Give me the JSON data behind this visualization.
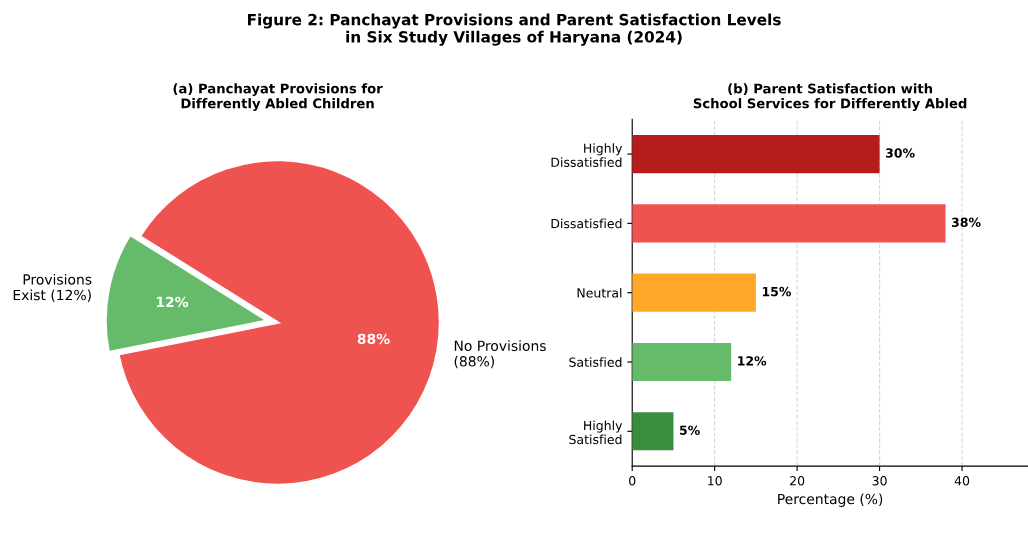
{
  "chart_data": [
    {
      "type": "pie",
      "title": "Figure 2: Panchayat Provisions and Parent Satisfaction Levels\nin Six Study Villages of Haryana (2024)",
      "subtitle": "(a) Panchayat Provisions for\nDifferently Abled Children",
      "categories": [
        "Provisions\nExist (12%)",
        "No Provisions\n(88%)"
      ],
      "values": [
        12,
        88
      ],
      "colors": [
        "#66bb6a",
        "#ef5350"
      ],
      "value_labels": [
        "12%",
        "88%"
      ]
    },
    {
      "type": "bar",
      "orientation": "horizontal",
      "subtitle": "(b) Parent Satisfaction with\nSchool Services for Differently Abled",
      "categories": [
        "Highly\nDissatisfied",
        "Dissatisfied",
        "Neutral",
        "Satisfied",
        "Highly\nSatisfied"
      ],
      "values": [
        30,
        38,
        15,
        12,
        5
      ],
      "colors": [
        "#b71c1c",
        "#ef5350",
        "#ffa726",
        "#66bb6a",
        "#388e3c"
      ],
      "value_labels": [
        "30%",
        "38%",
        "15%",
        "12%",
        "5%"
      ],
      "xlabel": "Percentage (%)",
      "xlim": [
        0,
        48
      ],
      "xticks": [
        0,
        10,
        20,
        30,
        40
      ],
      "grid": "x"
    }
  ]
}
